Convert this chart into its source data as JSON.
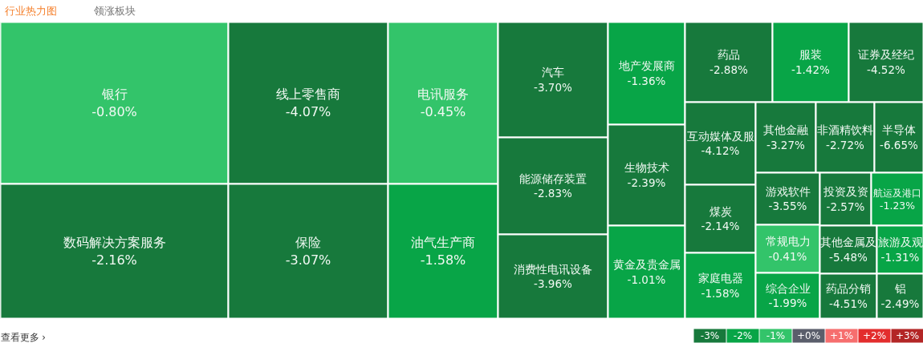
{
  "chart_data": [
    {
      "type": "other",
      "title": "行业热力图",
      "annotations": [
        "领涨板块",
        "查看更多 ›"
      ],
      "categories": [
        "银行",
        "数码解决方案服务",
        "线上零售商",
        "保险",
        "电讯服务",
        "油气生产商",
        "汽车",
        "能源储存装置",
        "消费性电讯设备",
        "地产发展商",
        "生物技术",
        "黄金及贵金属",
        "药品",
        "服装",
        "证券及经纪",
        "互动媒体及服",
        "煤炭",
        "家庭电器",
        "其他金融",
        "非酒精饮料",
        "半导体",
        "游戏软件",
        "常规电力",
        "综合企业",
        "投资及资",
        "航运及港口",
        "其他金属及",
        "药品分销",
        "旅游及观",
        "铝"
      ],
      "values": [
        -0.8,
        -2.16,
        -4.07,
        -3.07,
        -0.45,
        -1.58,
        -3.7,
        -2.83,
        -3.96,
        -1.36,
        -2.39,
        -1.01,
        -2.88,
        -1.42,
        -4.52,
        -4.12,
        -2.14,
        -1.58,
        -3.27,
        -2.72,
        -6.65,
        -3.55,
        -0.41,
        -1.99,
        -2.57,
        -1.23,
        -5.48,
        -4.51,
        -1.31,
        -2.49
      ],
      "value_labels": [
        "-0.80%",
        "-2.16%",
        "-4.07%",
        "-3.07%",
        "-0.45%",
        "-1.58%",
        "-3.70%",
        "-2.83%",
        "-3.96%",
        "-1.36%",
        "-2.39%",
        "-1.01%",
        "-2.88%",
        "-1.42%",
        "-4.52%",
        "-4.12%",
        "-2.14%",
        "-1.58%",
        "-3.27%",
        "-2.72%",
        "-6.65%",
        "-3.55%",
        "-0.41%",
        "-1.99%",
        "-2.57%",
        "-1.23%",
        "-5.48%",
        "-4.51%",
        "-1.31%",
        "-2.49%"
      ]
    },
    {
      "type": "heatmap",
      "categories": [
        null,
        null,
        null,
        null,
        null,
        null,
        null
      ],
      "y_categories": [
        null
      ],
      "cells": [
        [
          -3,
          -2,
          -1,
          0,
          1,
          2,
          3
        ]
      ],
      "cell_labels": [
        [
          "-3%",
          "-2%",
          "-1%",
          "+0%",
          "+1%",
          "+2%",
          "+3%"
        ]
      ],
      "colors": [
        "#17793c",
        "#08a547",
        "#33c46a",
        "#5a5e6b",
        "#f66e6e",
        "#e32d2d",
        "#b32626"
      ]
    }
  ]
}
